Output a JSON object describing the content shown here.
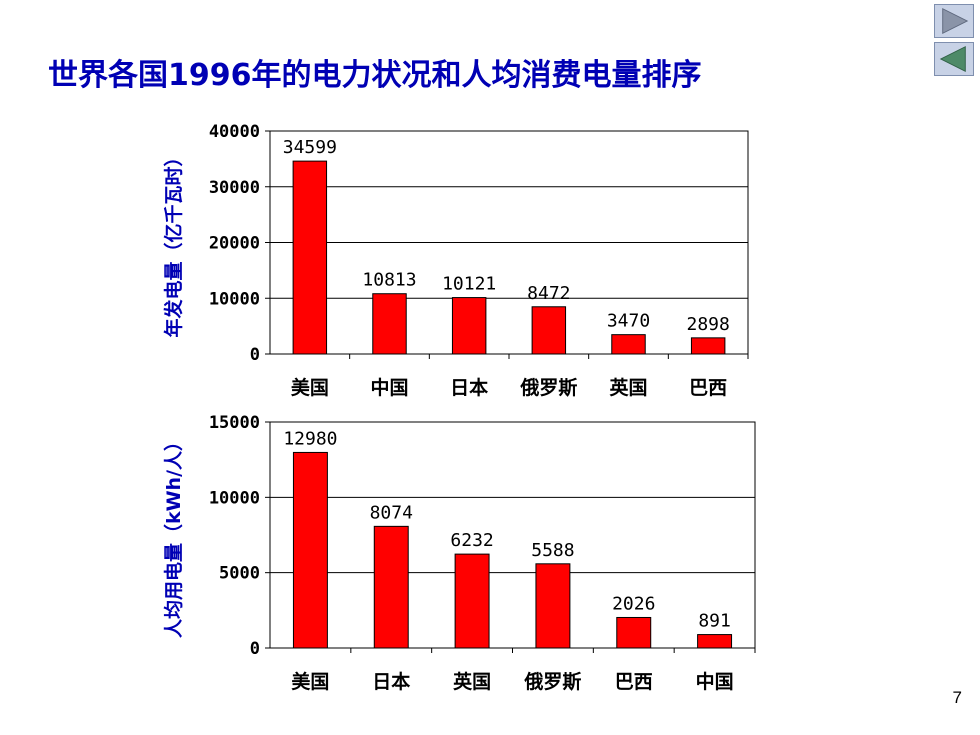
{
  "slide": {
    "title": "世界各国1996年的电力状况和人均消费电量排序",
    "page_number": "7",
    "nav": {
      "next_icon": "triangle-right-icon",
      "prev_icon": "triangle-left-icon"
    }
  },
  "colors": {
    "bar": "#ff0000",
    "title": "#0000b4",
    "axis_label": "#0000b4"
  },
  "chart_data": [
    {
      "type": "bar",
      "ylabel": "年发电量（亿千瓦时）",
      "xlabel": "",
      "categories": [
        "美国",
        "中国",
        "日本",
        "俄罗斯",
        "英国",
        "巴西"
      ],
      "values": [
        34599,
        10813,
        10121,
        8472,
        3470,
        2898
      ],
      "ylim": [
        0,
        40000
      ],
      "yticks": [
        0,
        10000,
        20000,
        30000,
        40000
      ],
      "grid": true,
      "legend": "none"
    },
    {
      "type": "bar",
      "ylabel": "人均用电量（kWh/人）",
      "xlabel": "",
      "categories": [
        "美国",
        "日本",
        "英国",
        "俄罗斯",
        "巴西",
        "中国"
      ],
      "values": [
        12980,
        8074,
        6232,
        5588,
        2026,
        891
      ],
      "ylim": [
        0,
        15000
      ],
      "yticks": [
        0,
        5000,
        10000,
        15000
      ],
      "grid": true,
      "legend": "none"
    }
  ]
}
